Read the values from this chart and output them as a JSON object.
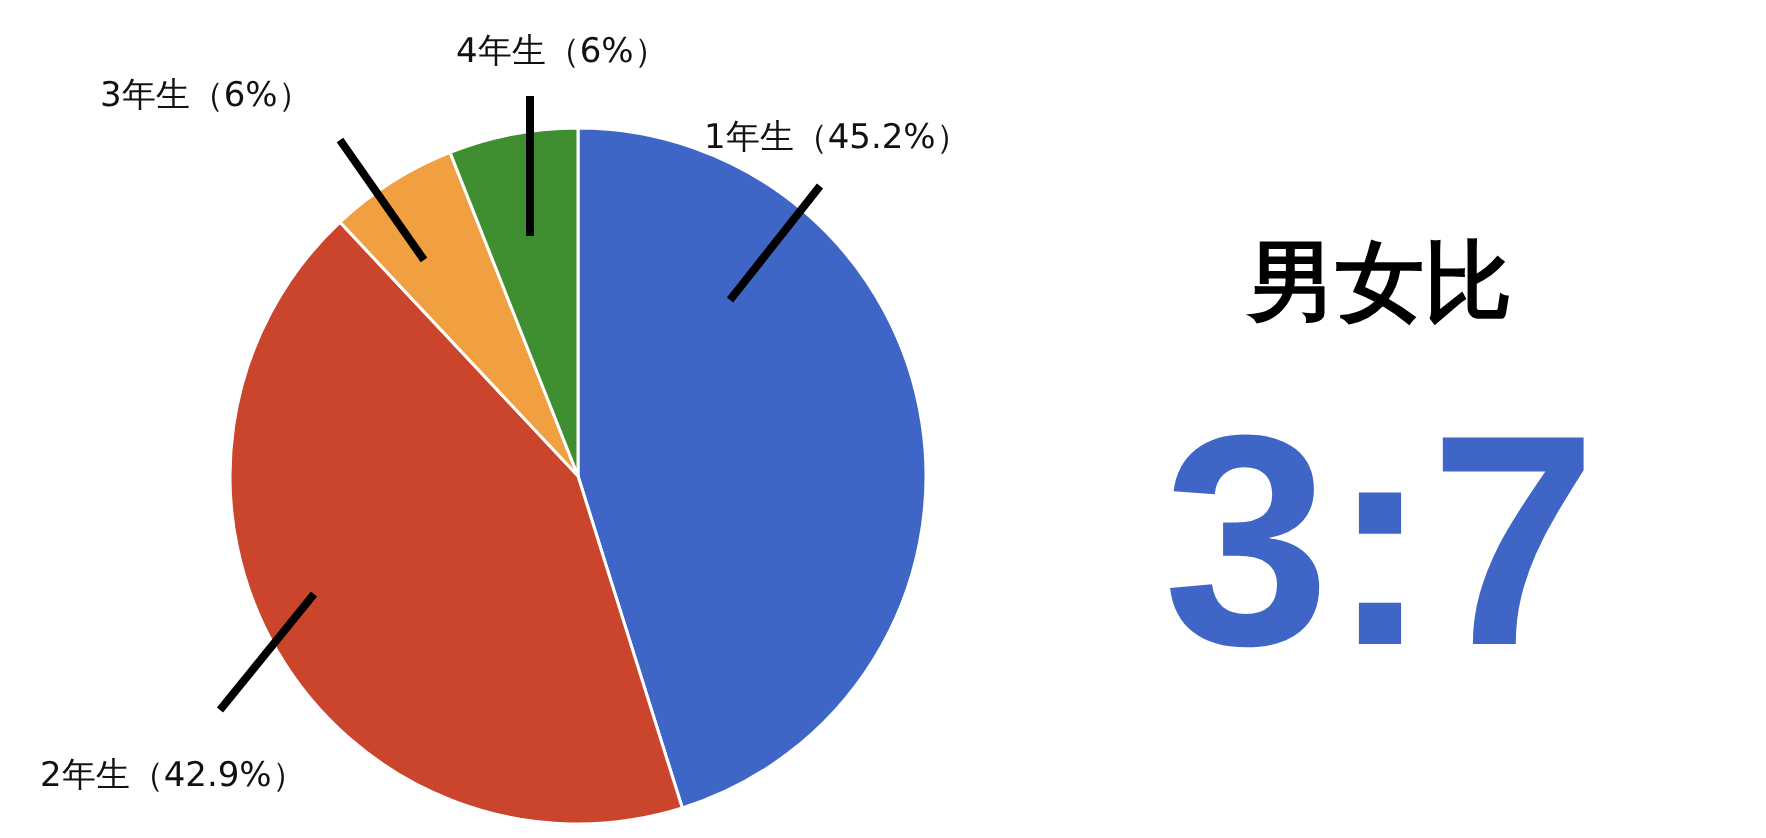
{
  "chart_data": [
    {
      "type": "pie",
      "categories": [
        "1年生（45.2%）",
        "2年生（42.9%）",
        "3年生（6%）",
        "4年生（6%）"
      ],
      "values": [
        45.2,
        42.9,
        6,
        6
      ],
      "colors": [
        "#3f66c6",
        "#cb452c",
        "#f0a040",
        "#3f8f32"
      ]
    },
    {
      "type": "other",
      "title": "男女比",
      "annotations": [
        "3:7"
      ]
    }
  ]
}
